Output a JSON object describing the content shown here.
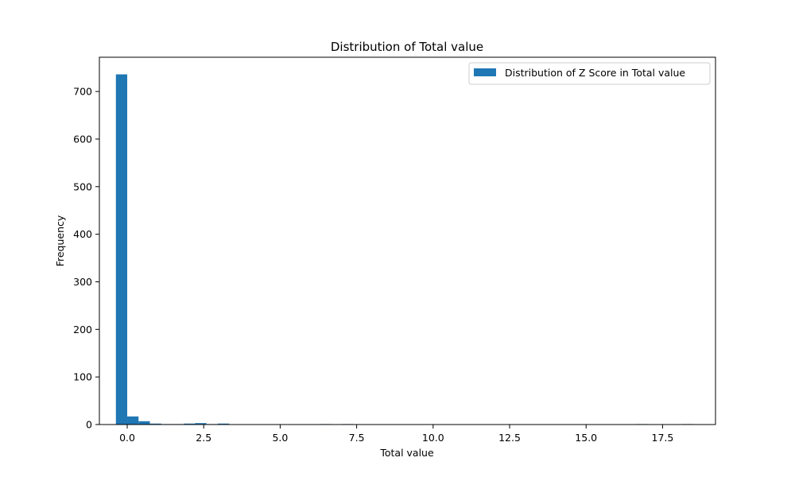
{
  "chart_data": {
    "type": "bar",
    "title": "Distribution of Total value",
    "xlabel": "Total value",
    "ylabel": "Frequency",
    "xlim": [
      -0.91,
      19.23
    ],
    "ylim": [
      0,
      772
    ],
    "xticks": [
      0.0,
      2.5,
      5.0,
      7.5,
      10.0,
      12.5,
      15.0,
      17.5
    ],
    "xtick_labels": [
      "0.0",
      "2.5",
      "5.0",
      "7.5",
      "10.0",
      "12.5",
      "15.0",
      "17.5"
    ],
    "yticks": [
      0,
      100,
      200,
      300,
      400,
      500,
      600,
      700
    ],
    "ytick_labels": [
      "0",
      "100",
      "200",
      "300",
      "400",
      "500",
      "600",
      "700"
    ],
    "legend_position": "top-right",
    "grid": false,
    "series": [
      {
        "name": "Distribution of Z Score in Total value",
        "color": "#1f77b4",
        "bins": [
          {
            "x0": -0.37,
            "x1": 0.0,
            "count": 736
          },
          {
            "x0": 0.0,
            "x1": 0.37,
            "count": 17
          },
          {
            "x0": 0.37,
            "x1": 0.74,
            "count": 7
          },
          {
            "x0": 0.74,
            "x1": 1.11,
            "count": 2
          },
          {
            "x0": 1.11,
            "x1": 1.48,
            "count": 1
          },
          {
            "x0": 1.48,
            "x1": 1.85,
            "count": 1
          },
          {
            "x0": 1.85,
            "x1": 2.22,
            "count": 2
          },
          {
            "x0": 2.22,
            "x1": 2.59,
            "count": 3
          },
          {
            "x0": 2.59,
            "x1": 2.96,
            "count": 1
          },
          {
            "x0": 2.96,
            "x1": 3.33,
            "count": 2
          },
          {
            "x0": 6.29,
            "x1": 6.66,
            "count": 1
          },
          {
            "x0": 7.03,
            "x1": 7.4,
            "count": 1
          },
          {
            "x0": 16.65,
            "x1": 17.02,
            "count": 1
          },
          {
            "x0": 18.13,
            "x1": 18.5,
            "count": 1
          }
        ]
      }
    ]
  }
}
